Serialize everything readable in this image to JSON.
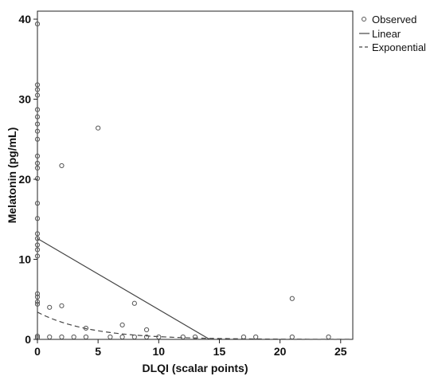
{
  "chart_data": {
    "type": "scatter",
    "xlabel": "DLQI (scalar points)",
    "ylabel": "Melatonin (pg/mL)",
    "xlim": [
      0,
      26
    ],
    "ylim": [
      0,
      41
    ],
    "xticks": [
      0,
      5,
      10,
      15,
      20,
      25
    ],
    "yticks": [
      0,
      10,
      20,
      30,
      40
    ],
    "grid": false,
    "legend_position": "right",
    "legend": [
      {
        "label": "Observed",
        "marker": "circle"
      },
      {
        "label": "Linear",
        "line": "solid"
      },
      {
        "label": "Exponential",
        "line": "dashed"
      }
    ],
    "series": [
      {
        "name": "Observed",
        "points": [
          [
            0,
            39.4
          ],
          [
            0,
            31.8
          ],
          [
            0,
            31.2
          ],
          [
            0,
            30.5
          ],
          [
            0,
            28.7
          ],
          [
            0,
            27.8
          ],
          [
            0,
            26.9
          ],
          [
            0,
            26.0
          ],
          [
            0,
            25.0
          ],
          [
            0,
            22.9
          ],
          [
            0,
            22.0
          ],
          [
            0,
            21.4
          ],
          [
            0,
            20.1
          ],
          [
            0,
            17.0
          ],
          [
            0,
            15.1
          ],
          [
            0,
            13.2
          ],
          [
            0,
            12.6
          ],
          [
            0,
            11.8
          ],
          [
            0,
            11.2
          ],
          [
            0,
            10.4
          ],
          [
            0,
            5.7
          ],
          [
            0,
            5.3
          ],
          [
            0,
            4.7
          ],
          [
            0,
            4.4
          ],
          [
            0,
            0.4
          ],
          [
            0,
            0.2
          ],
          [
            1,
            4.0
          ],
          [
            1,
            0.3
          ],
          [
            2,
            21.7
          ],
          [
            2,
            4.2
          ],
          [
            2,
            0.3
          ],
          [
            3,
            0.3
          ],
          [
            4,
            1.4
          ],
          [
            4,
            0.3
          ],
          [
            5,
            26.4
          ],
          [
            6,
            0.3
          ],
          [
            7,
            1.8
          ],
          [
            7,
            0.3
          ],
          [
            8,
            4.5
          ],
          [
            8,
            0.3
          ],
          [
            9,
            1.2
          ],
          [
            9,
            0.3
          ],
          [
            10,
            0.3
          ],
          [
            12,
            0.3
          ],
          [
            13,
            0.3
          ],
          [
            17,
            0.3
          ],
          [
            18,
            0.3
          ],
          [
            21,
            5.1
          ],
          [
            21,
            0.3
          ],
          [
            24,
            0.3
          ]
        ]
      },
      {
        "name": "Linear",
        "points": [
          [
            0,
            12.6
          ],
          [
            14.2,
            0
          ]
        ]
      },
      {
        "name": "Exponential",
        "a": 3.4,
        "b": -0.23
      }
    ]
  }
}
